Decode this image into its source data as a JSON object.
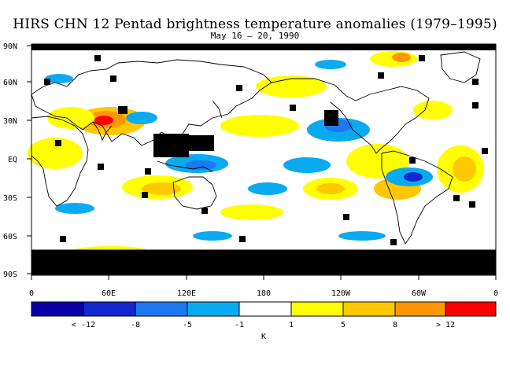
{
  "title": "HIRS CHN 12 Pentad brightness temperature anomalies (1979–1995)",
  "subtitle": "May 16 – 20, 1990",
  "colors": {
    "deep_blue": "#0a00a8",
    "dark_blue": "#1428d2",
    "mid_blue": "#1e78f0",
    "light_blue": "#0aaaf0",
    "white": "#ffffff",
    "yellow": "#ffff00",
    "light_orange": "#ffc800",
    "orange": "#ff9600",
    "dark_orange": "#ff7a00",
    "red": "#ff0000",
    "missing": "#000000"
  },
  "map": {
    "lat_labels": [
      "90N",
      "60N",
      "30N",
      "EQ",
      "30S",
      "60S",
      "90S"
    ],
    "lon_labels": [
      "0",
      "60E",
      "120E",
      "180",
      "120W",
      "60W",
      "0"
    ]
  },
  "legend": {
    "bin_colors": [
      "#0a00a8",
      "#1428d2",
      "#1e78f0",
      "#0aaaf0",
      "#ffffff",
      "#ffff00",
      "#ffc800",
      "#ff9600",
      "#ff7a00",
      "#ff0000"
    ],
    "labels": [
      "< -12",
      "-8",
      "-5",
      "-1",
      "1",
      "5",
      "8",
      "> 12"
    ],
    "unit": "K"
  }
}
